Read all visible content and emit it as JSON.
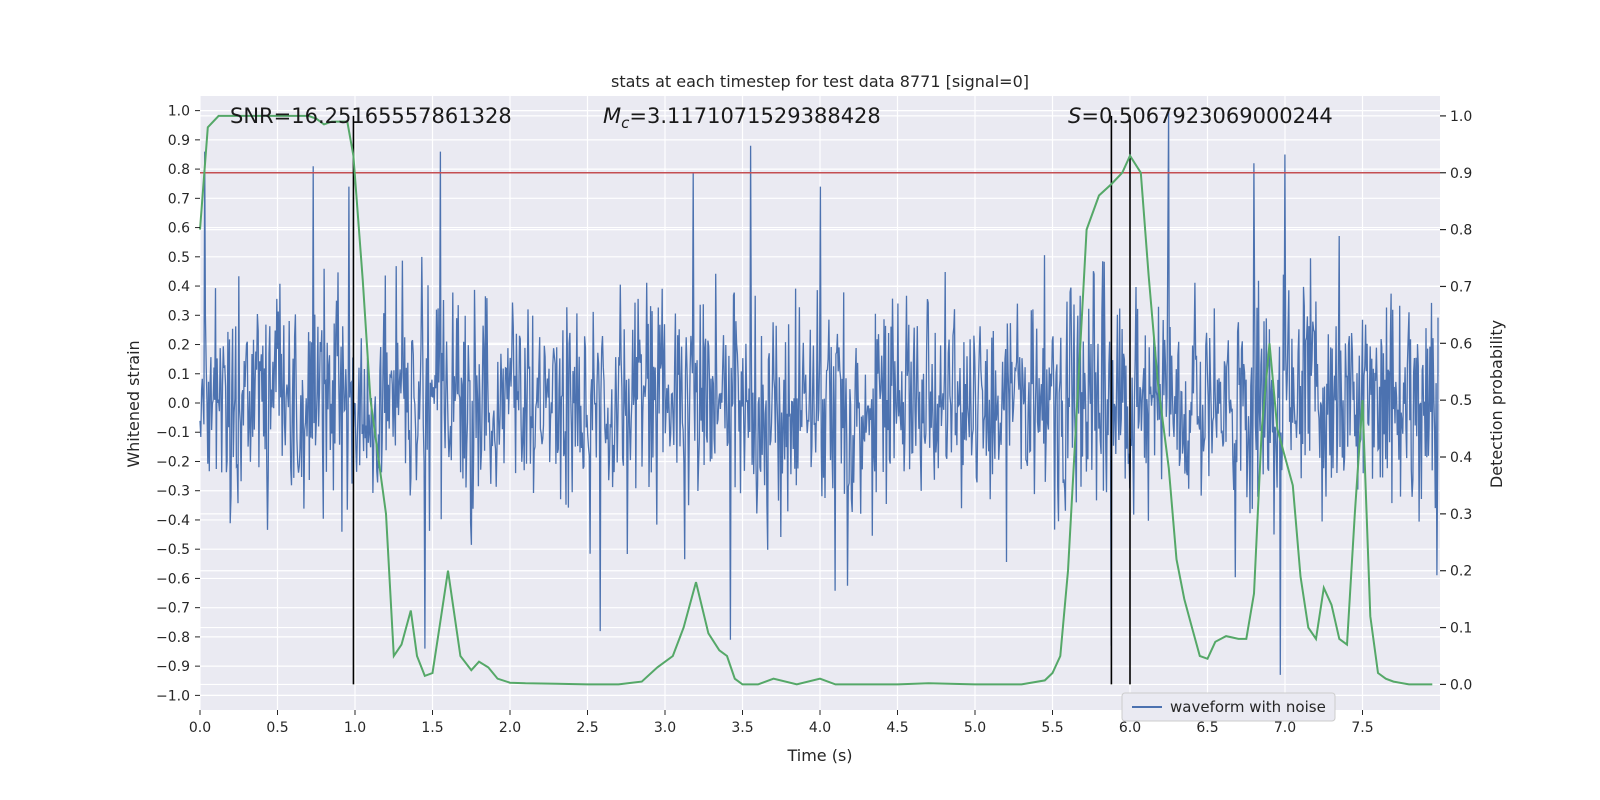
{
  "chart_data": {
    "type": "line",
    "title": "stats at each timestep for test data 8771 [signal=0]",
    "xlabel": "Time (s)",
    "ylabel_left": "Whitened strain",
    "ylabel_right": "Detection probability",
    "xlim": [
      0.0,
      8.0
    ],
    "ylim_left": [
      -1.05,
      1.05
    ],
    "ylim_right": [
      -0.045,
      1.035
    ],
    "xticks": [
      0.0,
      0.5,
      1.0,
      1.5,
      2.0,
      2.5,
      3.0,
      3.5,
      4.0,
      4.5,
      5.0,
      5.5,
      6.0,
      6.5,
      7.0,
      7.5
    ],
    "xtick_labels": [
      "0.0",
      "0.5",
      "1.0",
      "1.5",
      "2.0",
      "2.5",
      "3.0",
      "3.5",
      "4.0",
      "4.5",
      "5.0",
      "5.5",
      "6.0",
      "6.5",
      "7.0",
      "7.5"
    ],
    "yticks_left": [
      1.0,
      0.9,
      0.8,
      0.7,
      0.6,
      0.5,
      0.4,
      0.3,
      0.2,
      0.1,
      0.0,
      -0.1,
      -0.2,
      -0.3,
      -0.4,
      -0.5,
      -0.6,
      -0.7,
      -0.8,
      -0.9,
      -1.0
    ],
    "ytick_labels_left": [
      "1.0",
      "0.9",
      "0.8",
      "0.7",
      "0.6",
      "0.5",
      "0.4",
      "0.3",
      "0.2",
      "0.1",
      "0.0",
      "−0.1",
      "−0.2",
      "−0.3",
      "−0.4",
      "−0.5",
      "−0.6",
      "−0.7",
      "−0.8",
      "−0.9",
      "−1.0"
    ],
    "yticks_right": [
      1.0,
      0.9,
      0.8,
      0.7,
      0.6,
      0.5,
      0.4,
      0.3,
      0.2,
      0.1,
      0.0
    ],
    "ytick_labels_right": [
      "1.0",
      "0.9",
      "0.8",
      "0.7",
      "0.6",
      "0.5",
      "0.4",
      "0.3",
      "0.2",
      "0.1",
      "0.0"
    ],
    "grid": true,
    "legend": {
      "position": "lower-right",
      "entries": [
        "waveform with noise"
      ]
    },
    "annotations": {
      "snr": "SNR=16.25165557861328",
      "mc_symbol": "M",
      "mc_sub": "c",
      "mc_value": "=3.1171071529388428",
      "s_symbol": "S",
      "s_value": "=0.5067923069000244"
    },
    "threshold_line": {
      "axis": "right",
      "value": 0.9,
      "color": "#c44e52"
    },
    "vertical_lines": [
      0.99,
      5.88,
      6.0
    ],
    "vertical_line_range_right": [
      0.0,
      1.0
    ],
    "waveform": {
      "name": "waveform with noise",
      "color": "#4c72b0",
      "samples": 1600,
      "noise_std": 0.19,
      "peaks": [
        [
          0.03,
          0.86
        ],
        [
          0.73,
          0.81
        ],
        [
          0.96,
          0.74
        ],
        [
          1.55,
          0.86
        ],
        [
          3.55,
          0.88
        ],
        [
          6.25,
          1.0
        ],
        [
          6.8,
          0.82
        ],
        [
          6.97,
          -0.93
        ],
        [
          1.45,
          -0.84
        ],
        [
          5.88,
          -0.83
        ],
        [
          3.42,
          -0.81
        ],
        [
          2.58,
          -0.78
        ],
        [
          7.0,
          0.85
        ],
        [
          4.0,
          0.74
        ],
        [
          3.18,
          0.79
        ]
      ]
    },
    "detection_probability": {
      "color": "#55a868",
      "x": [
        0.0,
        0.05,
        0.12,
        0.2,
        0.3,
        0.4,
        0.5,
        0.6,
        0.65,
        0.7,
        0.75,
        0.8,
        0.85,
        0.9,
        0.95,
        0.99,
        1.05,
        1.1,
        1.2,
        1.25,
        1.3,
        1.36,
        1.4,
        1.45,
        1.5,
        1.55,
        1.6,
        1.68,
        1.75,
        1.8,
        1.86,
        1.92,
        2.0,
        2.1,
        2.3,
        2.5,
        2.7,
        2.85,
        2.95,
        3.05,
        3.12,
        3.2,
        3.28,
        3.35,
        3.4,
        3.45,
        3.5,
        3.6,
        3.7,
        3.85,
        4.0,
        4.1,
        4.3,
        4.5,
        4.7,
        5.0,
        5.3,
        5.45,
        5.5,
        5.55,
        5.6,
        5.65,
        5.72,
        5.8,
        5.88,
        5.95,
        6.0,
        6.07,
        6.12,
        6.18,
        6.25,
        6.3,
        6.35,
        6.4,
        6.45,
        6.5,
        6.55,
        6.62,
        6.7,
        6.75,
        6.8,
        6.85,
        6.9,
        6.95,
        7.0,
        7.05,
        7.1,
        7.15,
        7.2,
        7.25,
        7.3,
        7.35,
        7.4,
        7.45,
        7.5,
        7.55,
        7.6,
        7.65,
        7.7,
        7.8,
        7.88,
        7.95
      ],
      "y": [
        0.8,
        0.98,
        1.0,
        1.0,
        1.0,
        1.0,
        1.0,
        1.0,
        1.0,
        1.0,
        0.995,
        0.985,
        0.99,
        0.99,
        0.99,
        0.93,
        0.71,
        0.5,
        0.3,
        0.05,
        0.07,
        0.13,
        0.05,
        0.015,
        0.02,
        0.11,
        0.2,
        0.05,
        0.025,
        0.04,
        0.03,
        0.01,
        0.003,
        0.002,
        0.001,
        0.0,
        0.0,
        0.005,
        0.03,
        0.05,
        0.1,
        0.18,
        0.09,
        0.06,
        0.05,
        0.01,
        0.0,
        0.0,
        0.01,
        0.0,
        0.01,
        0.0,
        0.0,
        0.0,
        0.002,
        0.0,
        0.0,
        0.007,
        0.02,
        0.05,
        0.2,
        0.45,
        0.8,
        0.86,
        0.88,
        0.9,
        0.93,
        0.9,
        0.72,
        0.53,
        0.38,
        0.22,
        0.15,
        0.1,
        0.05,
        0.045,
        0.075,
        0.085,
        0.08,
        0.08,
        0.16,
        0.45,
        0.6,
        0.45,
        0.4,
        0.35,
        0.19,
        0.1,
        0.08,
        0.17,
        0.14,
        0.08,
        0.07,
        0.3,
        0.5,
        0.12,
        0.02,
        0.01,
        0.005,
        0.0,
        0.0,
        0.0
      ]
    }
  }
}
